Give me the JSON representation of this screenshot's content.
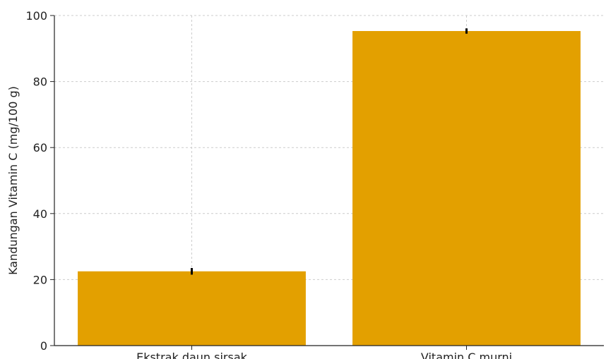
{
  "chart_data": {
    "type": "bar",
    "title": "",
    "xlabel": "",
    "ylabel": "Kandungan Vitamin C (mg/100 g)",
    "categories": [
      "Ekstrak daun sirsak",
      "Vitamin C murni"
    ],
    "values": [
      22.5,
      95.3
    ],
    "errors": [
      1.0,
      0.8
    ],
    "ylim": [
      0,
      100
    ],
    "yticks": [
      0,
      20,
      40,
      60,
      80,
      100
    ],
    "grid": true,
    "bar_color": "#E3A000",
    "error_color": "#000000",
    "grid_color": "#cccccc"
  }
}
